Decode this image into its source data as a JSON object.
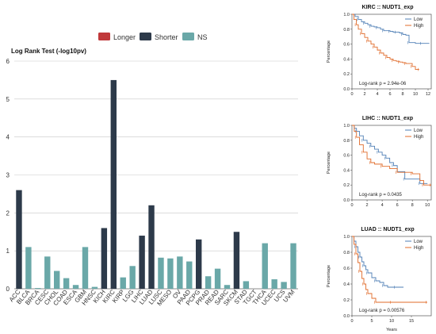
{
  "colors": {
    "longer": "#c0393b",
    "shorter": "#2d3a4a",
    "ns": "#6aa8a8",
    "km_low": "#4f7fb5",
    "km_high": "#e06b2a"
  },
  "chart_data": [
    {
      "type": "bar",
      "title": "Log Rank Test (-log10pv)",
      "legend": {
        "position": "top",
        "entries": [
          "Longer",
          "Shorter",
          "NS"
        ]
      },
      "ylim": [
        0,
        6
      ],
      "yticks": [
        0,
        1,
        2,
        3,
        4,
        5,
        6
      ],
      "grid": true,
      "categories": [
        "ACC",
        "BLCA",
        "BRCA",
        "CESC",
        "CHOL",
        "COAD",
        "ESCA",
        "GBM",
        "HNSC",
        "KICH",
        "KIRC",
        "KIRP",
        "LGG",
        "LIHC",
        "LUAD",
        "LUSC",
        "MESO",
        "OV",
        "PAAD",
        "PCPG",
        "PRAD",
        "READ",
        "SARC",
        "SKCM",
        "STAD",
        "TGCT",
        "THCA",
        "UCEC",
        "UCS",
        "UVM"
      ],
      "values": [
        2.6,
        1.1,
        0.02,
        0.85,
        0.47,
        0.28,
        0.1,
        1.1,
        0.05,
        1.6,
        5.5,
        0.3,
        0.6,
        1.4,
        2.2,
        0.82,
        0.8,
        0.85,
        0.72,
        1.3,
        0.33,
        0.53,
        0.1,
        1.5,
        0.2,
        0.0,
        1.2,
        0.25,
        0.18,
        1.2
      ],
      "groups": [
        "Shorter",
        "NS",
        "NS",
        "NS",
        "NS",
        "NS",
        "NS",
        "NS",
        "NS",
        "Shorter",
        "Shorter",
        "NS",
        "NS",
        "Shorter",
        "Shorter",
        "NS",
        "NS",
        "NS",
        "NS",
        "Shorter",
        "NS",
        "NS",
        "NS",
        "Shorter",
        "NS",
        "NS",
        "NS",
        "NS",
        "NS",
        "NS"
      ]
    },
    {
      "type": "line",
      "title": "KIRC :: NUDT1_exp",
      "ylabel": "Percentage",
      "xlim": [
        0,
        12.5
      ],
      "ylim": [
        0,
        1.0
      ],
      "xticks": [
        0,
        2,
        4,
        6,
        8,
        10,
        12
      ],
      "yticks": [
        0.0,
        0.2,
        0.4,
        0.6,
        0.8,
        1.0
      ],
      "yticklabels": [
        "0.0",
        "0.2",
        "0.4",
        "0.6",
        "0.8",
        "1.0"
      ],
      "legend": {
        "position": "top-right"
      },
      "annotation": "Log-rank p = 2.94e-06",
      "series": [
        {
          "name": "Low",
          "x": [
            0,
            0.5,
            1,
            1.5,
            2,
            2.5,
            3,
            3.5,
            4,
            4.5,
            5,
            5.5,
            6,
            6.5,
            7,
            7.5,
            8,
            8.5,
            9,
            10,
            11,
            12.2
          ],
          "y": [
            1.0,
            0.97,
            0.93,
            0.9,
            0.88,
            0.86,
            0.84,
            0.83,
            0.82,
            0.8,
            0.78,
            0.78,
            0.77,
            0.76,
            0.76,
            0.75,
            0.73,
            0.72,
            0.62,
            0.61,
            0.61,
            0.61
          ]
        },
        {
          "name": "High",
          "x": [
            0,
            0.3,
            0.7,
            1,
            1.5,
            2,
            2.5,
            3,
            3.5,
            4,
            4.5,
            5,
            5.5,
            6,
            6.5,
            7,
            7.5,
            8,
            8.5,
            9,
            9.5,
            10,
            10.6
          ],
          "y": [
            1.0,
            0.93,
            0.86,
            0.8,
            0.74,
            0.69,
            0.64,
            0.6,
            0.56,
            0.52,
            0.48,
            0.45,
            0.42,
            0.4,
            0.38,
            0.37,
            0.36,
            0.35,
            0.34,
            0.34,
            0.3,
            0.26,
            0.26
          ]
        }
      ]
    },
    {
      "type": "line",
      "title": "LIHC :: NUDT1_exp",
      "ylabel": "Percentage",
      "xlim": [
        0,
        10.5
      ],
      "ylim": [
        0,
        1.0
      ],
      "xticks": [
        0,
        2,
        4,
        6,
        8,
        10
      ],
      "yticks": [
        0.0,
        0.2,
        0.4,
        0.6,
        0.8,
        1.0
      ],
      "yticklabels": [
        "0.0",
        "0.2",
        "0.4",
        "0.6",
        "0.8",
        "1.0"
      ],
      "legend": {
        "position": "top-right"
      },
      "annotation": "Log-rank p = 0.0435",
      "series": [
        {
          "name": "Low",
          "x": [
            0,
            0.3,
            0.6,
            1,
            1.5,
            2,
            2.5,
            3,
            3.5,
            4,
            4.5,
            5,
            5.5,
            6,
            7,
            8,
            9,
            10
          ],
          "y": [
            1.0,
            0.96,
            0.92,
            0.86,
            0.8,
            0.76,
            0.72,
            0.68,
            0.64,
            0.6,
            0.56,
            0.5,
            0.46,
            0.38,
            0.28,
            0.28,
            0.22,
            0.22
          ]
        },
        {
          "name": "High",
          "x": [
            0,
            0.3,
            0.6,
            1,
            1.5,
            2,
            2.5,
            3,
            4,
            5,
            6,
            7,
            8,
            9,
            9.5,
            10,
            10.5
          ],
          "y": [
            1.0,
            0.92,
            0.84,
            0.74,
            0.64,
            0.55,
            0.5,
            0.48,
            0.45,
            0.42,
            0.37,
            0.37,
            0.35,
            0.26,
            0.2,
            0.2,
            0.2
          ]
        }
      ]
    },
    {
      "type": "line",
      "title": "LUAD :: NUDT1_exp",
      "ylabel": "Percentage",
      "xlabel": "Years",
      "xlim": [
        0,
        20
      ],
      "ylim": [
        0,
        1.0
      ],
      "xticks": [
        0,
        5,
        10,
        15
      ],
      "yticks": [
        0.0,
        0.2,
        0.4,
        0.6,
        0.8,
        1.0
      ],
      "yticklabels": [
        "0.0",
        "0.2",
        "0.4",
        "0.6",
        "0.8",
        "1.0"
      ],
      "legend": {
        "position": "top-right"
      },
      "annotation": "Log-rank p = 0.00576",
      "series": [
        {
          "name": "Low",
          "x": [
            0,
            0.5,
            1,
            1.5,
            2,
            2.5,
            3,
            3.5,
            4,
            5,
            6,
            7,
            8,
            9,
            11,
            13
          ],
          "y": [
            1.0,
            0.94,
            0.87,
            0.8,
            0.74,
            0.68,
            0.63,
            0.58,
            0.54,
            0.48,
            0.44,
            0.42,
            0.38,
            0.36,
            0.36,
            0.36
          ]
        },
        {
          "name": "High",
          "x": [
            0,
            0.5,
            1,
            1.5,
            2,
            2.5,
            3,
            3.5,
            4,
            5,
            6,
            8,
            10,
            14,
            19
          ],
          "y": [
            1.0,
            0.9,
            0.78,
            0.67,
            0.56,
            0.47,
            0.4,
            0.33,
            0.28,
            0.22,
            0.17,
            0.17,
            0.17,
            0.17,
            0.17
          ]
        }
      ]
    }
  ]
}
